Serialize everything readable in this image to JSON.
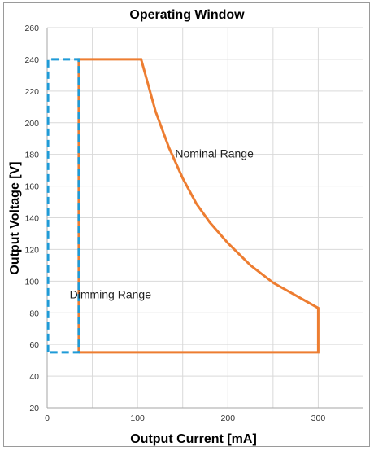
{
  "chart_data": {
    "type": "line",
    "title": "Operating Window",
    "xlabel": "Output Current [mA]",
    "ylabel": "Output Voltage [V]",
    "xlim": [
      0,
      350
    ],
    "ylim": [
      20,
      260
    ],
    "xticks": [
      0,
      100,
      200,
      300
    ],
    "yticks": [
      20,
      40,
      60,
      80,
      100,
      120,
      140,
      160,
      180,
      200,
      220,
      240,
      260
    ],
    "grid": true,
    "series": [
      {
        "name": "Nominal Range",
        "color": "#ED7D31",
        "style": "solid",
        "points": [
          [
            35,
            55
          ],
          [
            35,
            240
          ],
          [
            104,
            240
          ],
          [
            120,
            207
          ],
          [
            135,
            184
          ],
          [
            150,
            165
          ],
          [
            165,
            149
          ],
          [
            180,
            137
          ],
          [
            200,
            124
          ],
          [
            225,
            110
          ],
          [
            250,
            99
          ],
          [
            275,
            91
          ],
          [
            300,
            83
          ],
          [
            300,
            55
          ],
          [
            35,
            55
          ]
        ]
      },
      {
        "name": "Dimming Range",
        "color": "#1F9BD7",
        "style": "dashed",
        "points": [
          [
            1,
            55
          ],
          [
            1,
            240
          ],
          [
            35,
            240
          ],
          [
            35,
            55
          ],
          [
            1,
            55
          ]
        ]
      }
    ],
    "annotations": [
      {
        "text": "Nominal Range",
        "x": 185,
        "y": 178
      },
      {
        "text": "Dimming Range",
        "x": 70,
        "y": 89
      }
    ]
  }
}
